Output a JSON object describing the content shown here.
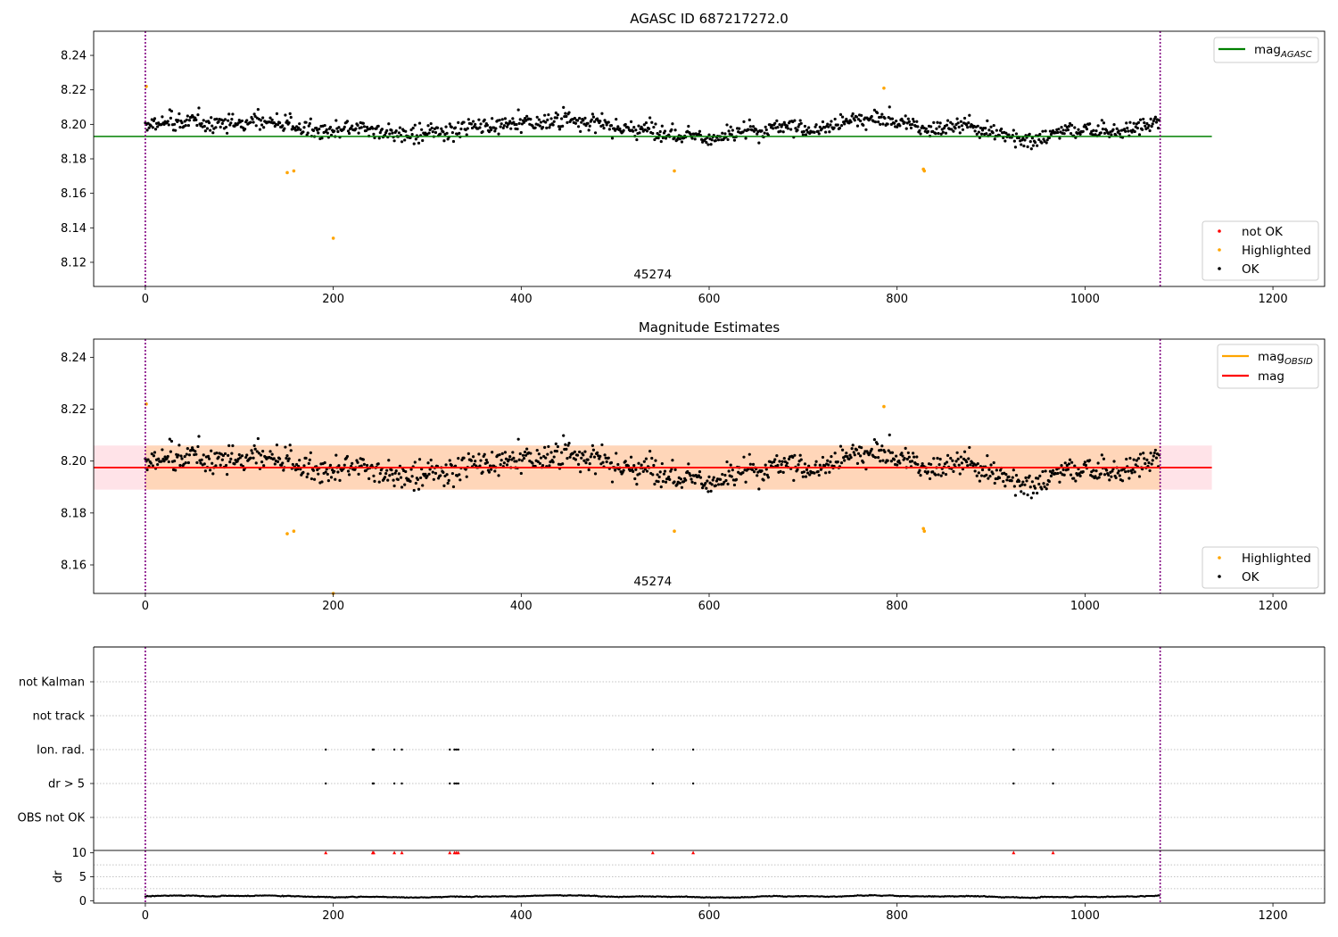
{
  "chart_data": [
    {
      "type": "scatter",
      "title": "AGASC ID 687217272.0",
      "xlim": [
        -55,
        1255
      ],
      "ylim": [
        8.106,
        8.254
      ],
      "xticks": [
        0,
        200,
        400,
        600,
        800,
        1000,
        1200
      ],
      "yticks": [
        8.12,
        8.14,
        8.16,
        8.18,
        8.2,
        8.22,
        8.24
      ],
      "obsid_label": {
        "text": "45274",
        "x": 540
      },
      "vlines": [
        0,
        1080
      ],
      "reference_line": {
        "name": "mag_AGASC",
        "y": 8.193,
        "x_range": [
          -55,
          1135
        ],
        "color": "#008000"
      },
      "legend_lines": [
        {
          "name": "mag",
          "sub": "AGASC",
          "color": "#008000"
        }
      ],
      "legend_points": [
        {
          "name": "not OK",
          "color": "#ff0000"
        },
        {
          "name": "Highlighted",
          "color": "#ffa500"
        },
        {
          "name": "OK",
          "color": "#000000"
        }
      ],
      "series": [
        {
          "name": "OK",
          "color": "#000000",
          "n_points": 1080,
          "x_range": [
            0,
            1080
          ],
          "y_mean": 8.198
        },
        {
          "name": "Highlighted",
          "color": "#ffa500",
          "x": [
            1,
            151,
            158,
            200,
            563,
            786,
            828,
            829
          ],
          "y": [
            8.222,
            8.172,
            8.173,
            8.134,
            8.173,
            8.221,
            8.174,
            8.173
          ]
        }
      ]
    },
    {
      "type": "scatter",
      "title": "Magnitude Estimates",
      "xlim": [
        -55,
        1255
      ],
      "ylim": [
        8.149,
        8.247
      ],
      "xticks": [
        0,
        200,
        400,
        600,
        800,
        1000,
        1200
      ],
      "yticks": [
        8.16,
        8.18,
        8.2,
        8.22,
        8.24
      ],
      "obsid_label": {
        "text": "45274",
        "x": 540
      },
      "vlines": [
        0,
        1080
      ],
      "mag_line": {
        "name": "mag",
        "y": 8.1975,
        "x_range": [
          -55,
          1135
        ],
        "color": "#ff0000"
      },
      "mag_band": {
        "y_range": [
          8.189,
          8.206
        ],
        "x_range": [
          -55,
          1135
        ],
        "color": "#ffc0cb"
      },
      "obsid_line": {
        "name": "mag_OBSID",
        "y": 8.1975,
        "x_range": [
          0,
          1080
        ],
        "color": "#ffa500"
      },
      "obsid_band": {
        "y_range": [
          8.189,
          8.206
        ],
        "x_range": [
          0,
          1080
        ],
        "color": "#ffa500"
      },
      "legend_lines": [
        {
          "name": "mag",
          "sub": "OBSID",
          "color": "#ffa500"
        },
        {
          "name": "mag",
          "sub": "",
          "color": "#ff0000"
        }
      ],
      "legend_points": [
        {
          "name": "Highlighted",
          "color": "#ffa500"
        },
        {
          "name": "OK",
          "color": "#000000"
        }
      ],
      "series": [
        {
          "name": "OK",
          "color": "#000000",
          "n_points": 1080,
          "x_range": [
            0,
            1080
          ],
          "y_mean": 8.198
        },
        {
          "name": "Highlighted",
          "color": "#ffa500",
          "x": [
            1,
            151,
            158,
            200,
            563,
            786,
            828,
            829
          ],
          "y": [
            8.222,
            8.172,
            8.173,
            8.149,
            8.173,
            8.221,
            8.174,
            8.173
          ]
        }
      ]
    },
    {
      "type": "scatter",
      "title": "",
      "xlim": [
        -55,
        1255
      ],
      "categories": [
        "not Kalman",
        "not track",
        "Ion. rad.",
        "dr > 5",
        "OBS not OK"
      ],
      "vlines": [
        0,
        1080
      ],
      "flags": [
        {
          "category": "Ion. rad.",
          "x": [
            192,
            242,
            243,
            265,
            273,
            324,
            329,
            331,
            333,
            540,
            583,
            924,
            966
          ]
        },
        {
          "category": "dr > 5",
          "x": [
            192,
            242,
            243,
            265,
            273,
            324,
            329,
            331,
            333,
            540,
            583,
            924,
            966
          ]
        }
      ]
    },
    {
      "type": "scatter",
      "title": "",
      "ylabel": "dr",
      "xlim": [
        -55,
        1255
      ],
      "ylim": [
        -0.5,
        10.5
      ],
      "xticks": [
        0,
        200,
        400,
        600,
        800,
        1000,
        1200
      ],
      "yticks": [
        0,
        5,
        10
      ],
      "vlines": [
        0,
        1080
      ],
      "series": [
        {
          "name": "dr",
          "color": "#000000",
          "n_points": 1080,
          "x_range": [
            0,
            1080
          ],
          "y_mean": 0.9
        },
        {
          "name": "dr > 5",
          "color": "#ff0000",
          "marker": "triangle",
          "x": [
            192,
            242,
            243,
            265,
            273,
            324,
            329,
            331,
            333,
            540,
            583,
            924,
            966
          ],
          "y": [
            10,
            10,
            10,
            10,
            10,
            10,
            10,
            10,
            10,
            10,
            10,
            10,
            10
          ]
        }
      ]
    }
  ]
}
